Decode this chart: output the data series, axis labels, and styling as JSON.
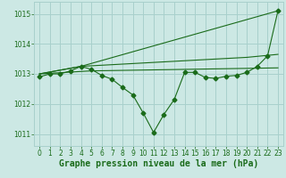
{
  "xlabel": "Graphe pression niveau de la mer (hPa)",
  "bg_color": "#cce8e4",
  "grid_color": "#a8d0cc",
  "line_color": "#1a6b1a",
  "ylim": [
    1010.6,
    1015.4
  ],
  "xlim": [
    -0.5,
    23.5
  ],
  "yticks": [
    1011,
    1012,
    1013,
    1014,
    1015
  ],
  "xticks": [
    0,
    1,
    2,
    3,
    4,
    5,
    6,
    7,
    8,
    9,
    10,
    11,
    12,
    13,
    14,
    15,
    16,
    17,
    18,
    19,
    20,
    21,
    22,
    23
  ],
  "line1_x": [
    0,
    1,
    2,
    3,
    4,
    5,
    6,
    7,
    8,
    9,
    10,
    11,
    12,
    13,
    14,
    15,
    16,
    17,
    18,
    19,
    20,
    21,
    22,
    23
  ],
  "line1_y": [
    1012.9,
    1013.0,
    1013.0,
    1013.1,
    1013.25,
    1013.15,
    1012.95,
    1012.82,
    1012.55,
    1012.3,
    1011.7,
    1011.05,
    1011.65,
    1012.15,
    1013.05,
    1013.05,
    1012.88,
    1012.85,
    1012.92,
    1012.95,
    1013.05,
    1013.25,
    1013.6,
    1015.1
  ],
  "line2_x": [
    0,
    4,
    23
  ],
  "line2_y": [
    1013.0,
    1013.25,
    1015.1
  ],
  "line3_x": [
    0,
    4,
    20,
    23
  ],
  "line3_y": [
    1013.0,
    1013.25,
    1013.55,
    1013.65
  ],
  "line4_x": [
    0,
    5,
    23
  ],
  "line4_y": [
    1013.0,
    1013.1,
    1013.2
  ],
  "label_fontsize": 7,
  "tick_fontsize": 5.5
}
